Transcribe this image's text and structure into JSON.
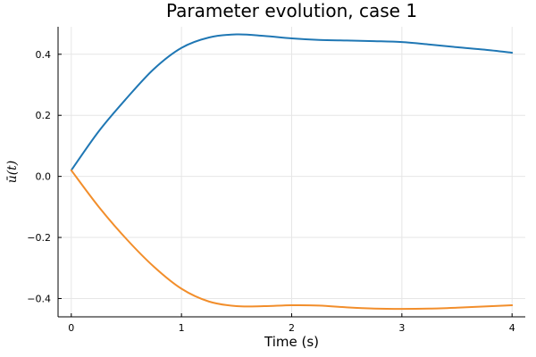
{
  "chart_data": {
    "type": "line",
    "title": "Parameter evolution, case 1",
    "xlabel": "Time (s)",
    "ylabel": "ū(t)",
    "xlim": [
      -0.12,
      4.12
    ],
    "ylim": [
      -0.46,
      0.49
    ],
    "xticks": [
      0,
      1,
      2,
      3,
      4
    ],
    "xtick_labels": [
      "0",
      "1",
      "2",
      "3",
      "4"
    ],
    "yticks": [
      -0.4,
      -0.2,
      0.0,
      0.2,
      0.4
    ],
    "ytick_labels": [
      "−0.4",
      "−0.2",
      "0.0",
      "0.2",
      "0.4"
    ],
    "grid": true,
    "legend": "none",
    "series": [
      {
        "color": "#1f77b4",
        "x": [
          0,
          0.25,
          0.5,
          0.75,
          1.0,
          1.25,
          1.5,
          1.75,
          2.0,
          2.25,
          2.5,
          2.75,
          3.0,
          3.25,
          3.5,
          3.75,
          4.0
        ],
        "y": [
          0.02,
          0.148,
          0.255,
          0.352,
          0.421,
          0.455,
          0.465,
          0.46,
          0.452,
          0.447,
          0.445,
          0.443,
          0.44,
          0.432,
          0.423,
          0.415,
          0.405
        ]
      },
      {
        "color": "#f28e2b",
        "x": [
          0,
          0.25,
          0.5,
          0.75,
          1.0,
          1.25,
          1.5,
          1.75,
          2.0,
          2.25,
          2.5,
          2.75,
          3.0,
          3.25,
          3.5,
          3.75,
          4.0
        ],
        "y": [
          0.02,
          -0.1,
          -0.205,
          -0.296,
          -0.368,
          -0.41,
          -0.425,
          -0.425,
          -0.422,
          -0.423,
          -0.429,
          -0.433,
          -0.434,
          -0.433,
          -0.43,
          -0.426,
          -0.422
        ]
      }
    ]
  }
}
